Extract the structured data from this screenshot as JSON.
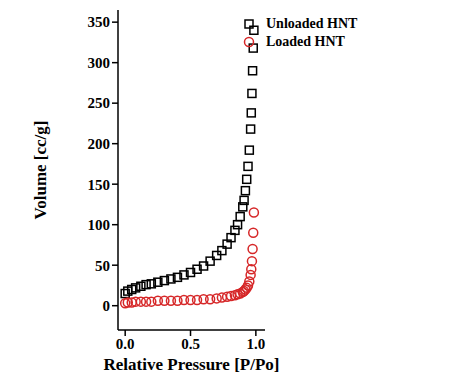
{
  "chart_data": {
    "type": "scatter",
    "x_label": "Relative Pressure [P/Po]",
    "y_label": "Volume [cc/g]",
    "xlim": [
      -0.055,
      1.07
    ],
    "ylim": [
      -30,
      365
    ],
    "xticks": [
      {
        "value": 0,
        "label": "0.0"
      },
      {
        "value": 0.5,
        "label": "0.5"
      },
      {
        "value": 1,
        "label": "1.0"
      }
    ],
    "yticks": [
      0,
      50,
      100,
      150,
      200,
      250,
      300,
      350
    ],
    "grid": false,
    "legend": "upper right",
    "series": [
      {
        "name": "Unloaded HNT",
        "color": "#000000",
        "marker": "square",
        "x": [
          0.0,
          0.02,
          0.05,
          0.08,
          0.12,
          0.16,
          0.2,
          0.25,
          0.3,
          0.35,
          0.4,
          0.45,
          0.5,
          0.55,
          0.6,
          0.65,
          0.7,
          0.74,
          0.78,
          0.81,
          0.84,
          0.86,
          0.88,
          0.9,
          0.91,
          0.92,
          0.93,
          0.94,
          0.95,
          0.96,
          0.965,
          0.97,
          0.975,
          0.98,
          0.985
        ],
        "values": [
          15,
          18,
          20,
          22,
          24,
          26,
          27,
          29,
          31,
          33,
          35,
          38,
          41,
          45,
          49,
          55,
          62,
          68,
          76,
          84,
          93,
          100,
          110,
          122,
          130,
          142,
          156,
          172,
          192,
          218,
          238,
          262,
          290,
          318,
          340
        ]
      },
      {
        "name": "Loaded HNT",
        "color": "#d62728",
        "marker": "circle",
        "x": [
          0.0,
          0.02,
          0.05,
          0.08,
          0.12,
          0.16,
          0.2,
          0.25,
          0.3,
          0.35,
          0.4,
          0.45,
          0.5,
          0.55,
          0.6,
          0.65,
          0.7,
          0.74,
          0.78,
          0.81,
          0.84,
          0.86,
          0.88,
          0.9,
          0.91,
          0.92,
          0.93,
          0.94,
          0.95,
          0.96,
          0.965,
          0.97,
          0.975,
          0.98,
          0.985
        ],
        "values": [
          3,
          4,
          4,
          5,
          5,
          5,
          5,
          6,
          6,
          6,
          6,
          7,
          7,
          7,
          8,
          8,
          9,
          10,
          11,
          12,
          13,
          14,
          15,
          17,
          18,
          20,
          22,
          25,
          30,
          38,
          45,
          55,
          70,
          90,
          115
        ]
      }
    ]
  }
}
